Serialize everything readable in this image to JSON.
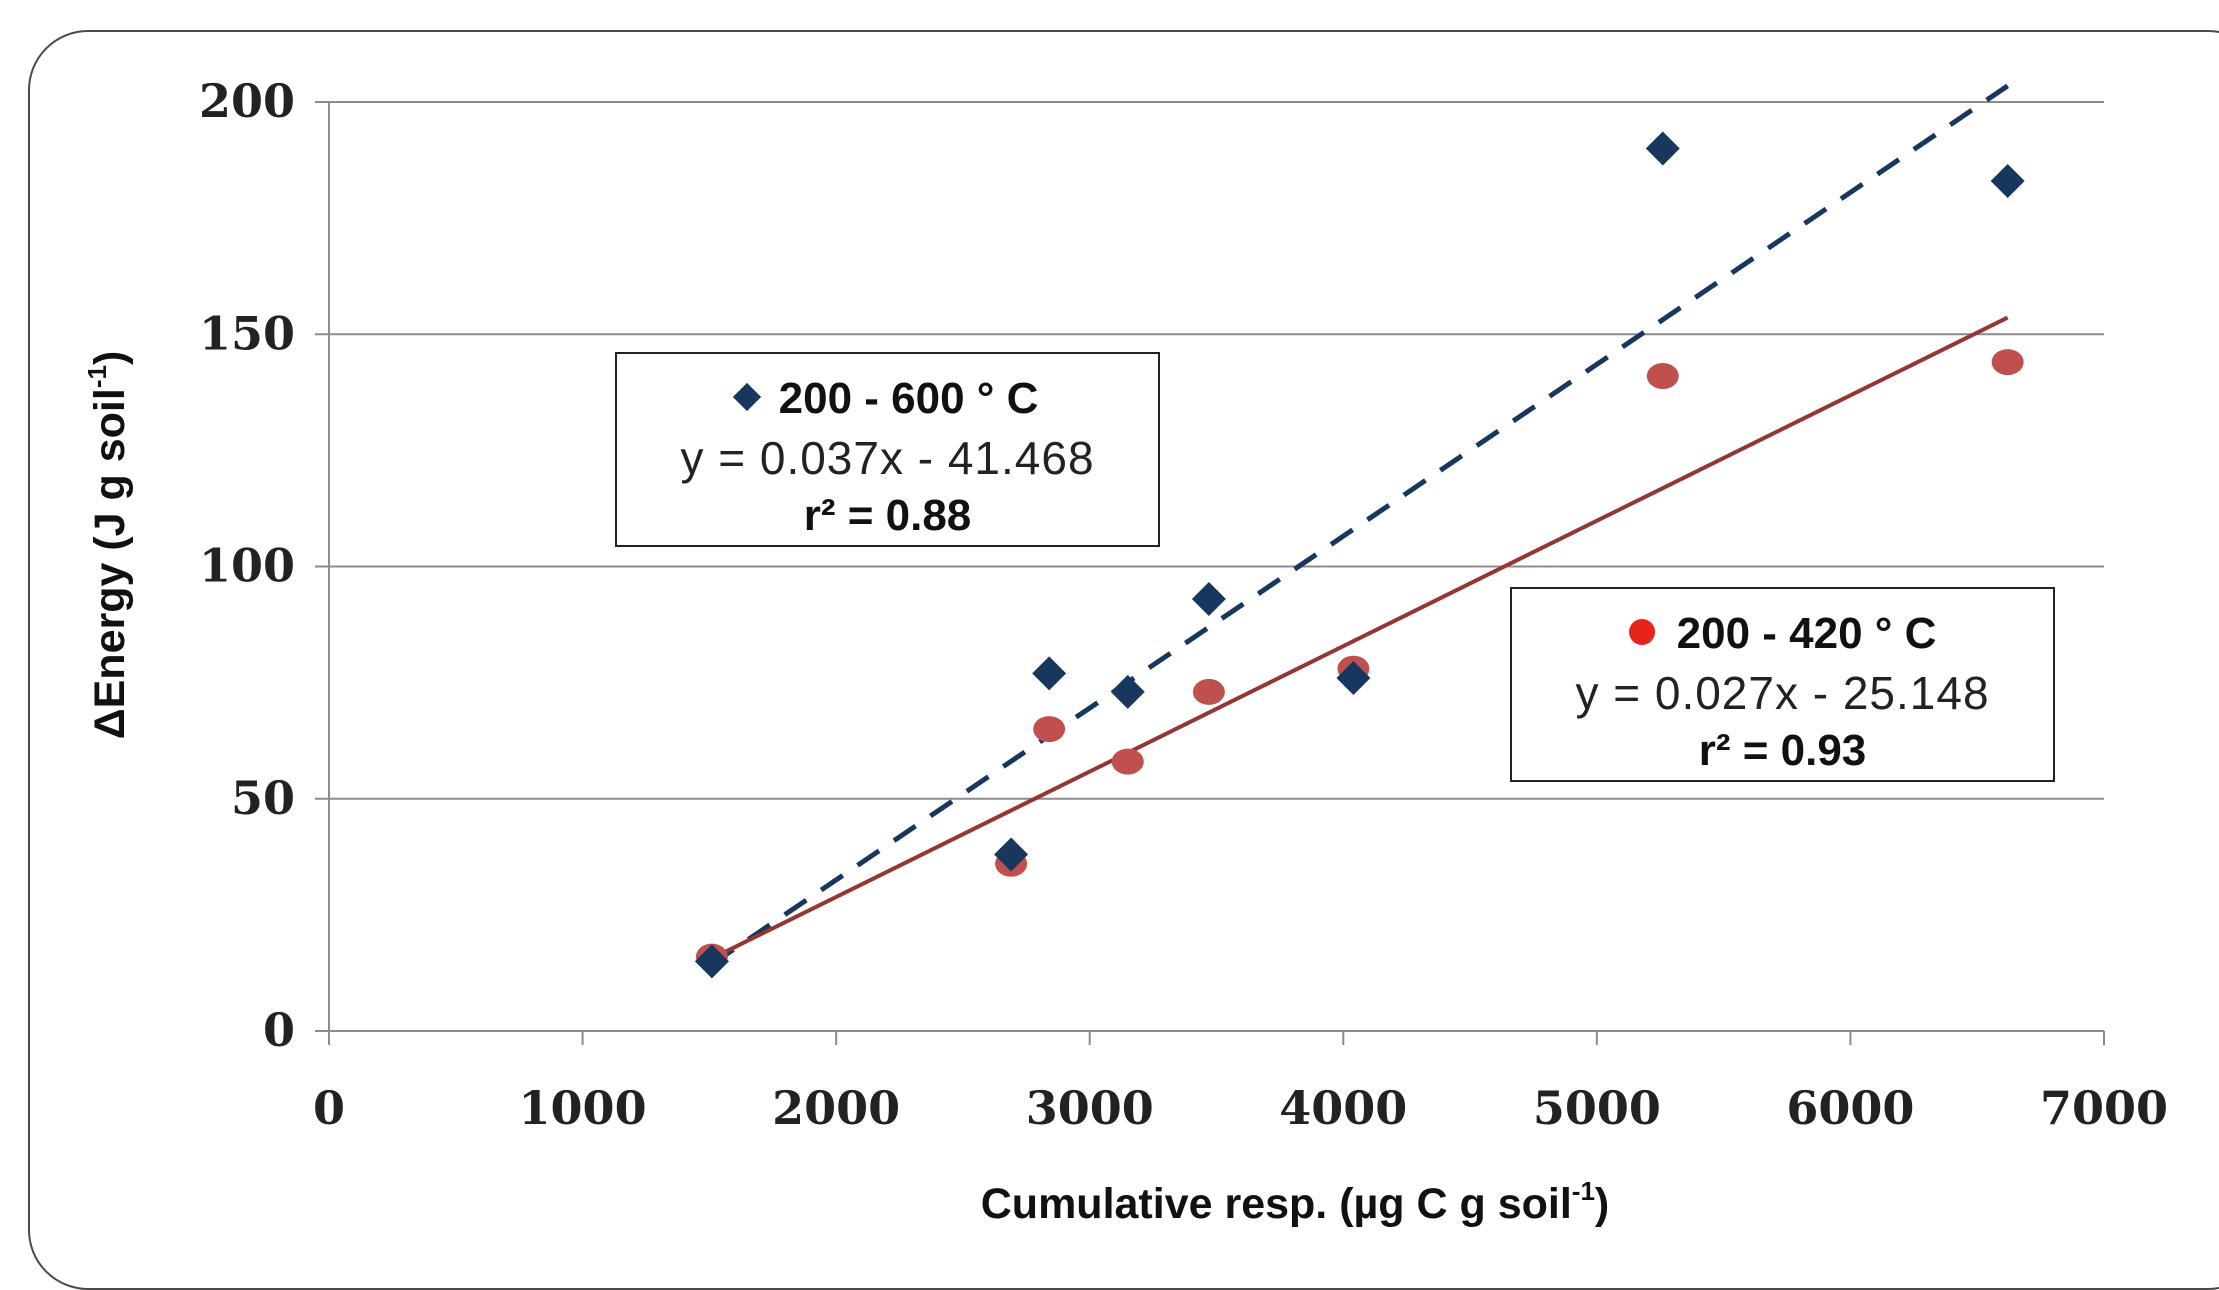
{
  "chart_data": {
    "type": "scatter",
    "title": "",
    "xlabel": "Cumulative resp. (µg C g soil",
    "xlabel_sup": "-1",
    "xlabel_end": ")",
    "ylabel": "ΔEnergy  (J g soil",
    "ylabel_sup": "-1",
    "ylabel_end": ")",
    "xlim": [
      0,
      7000
    ],
    "ylim": [
      0,
      200
    ],
    "xticks": [
      0,
      1000,
      2000,
      3000,
      4000,
      5000,
      6000,
      7000
    ],
    "yticks": [
      0,
      50,
      100,
      150,
      200
    ],
    "grid": "horizontal",
    "series": [
      {
        "name": "200 - 600 ° C",
        "marker": "diamond",
        "color": "#17375e",
        "points": [
          [
            1510,
            15
          ],
          [
            2690,
            38
          ],
          [
            2840,
            77
          ],
          [
            3150,
            73
          ],
          [
            3470,
            93
          ],
          [
            4040,
            76
          ],
          [
            5260,
            190
          ],
          [
            6620,
            183
          ]
        ],
        "trendline": {
          "slope": 0.037,
          "intercept": -41.468,
          "style": "dashed",
          "color": "#17375e",
          "x_range": [
            1510,
            6620
          ]
        },
        "equation": "y = 0.037x - 41.468",
        "r2": "r² = 0.88"
      },
      {
        "name": "200 - 420 ° C",
        "marker": "circle",
        "color": "#c0504d",
        "legend_color": "#e8231b",
        "points": [
          [
            1510,
            16
          ],
          [
            2690,
            36
          ],
          [
            2840,
            65
          ],
          [
            3150,
            58
          ],
          [
            3470,
            73
          ],
          [
            4040,
            78
          ],
          [
            5260,
            141
          ],
          [
            6620,
            144
          ]
        ],
        "trendline": {
          "slope": 0.027,
          "intercept": -25.148,
          "style": "solid",
          "color": "#943634",
          "x_range": [
            1510,
            6620
          ]
        },
        "equation": "y = 0.027x - 25.148",
        "r2": "r² = 0.93"
      }
    ]
  }
}
